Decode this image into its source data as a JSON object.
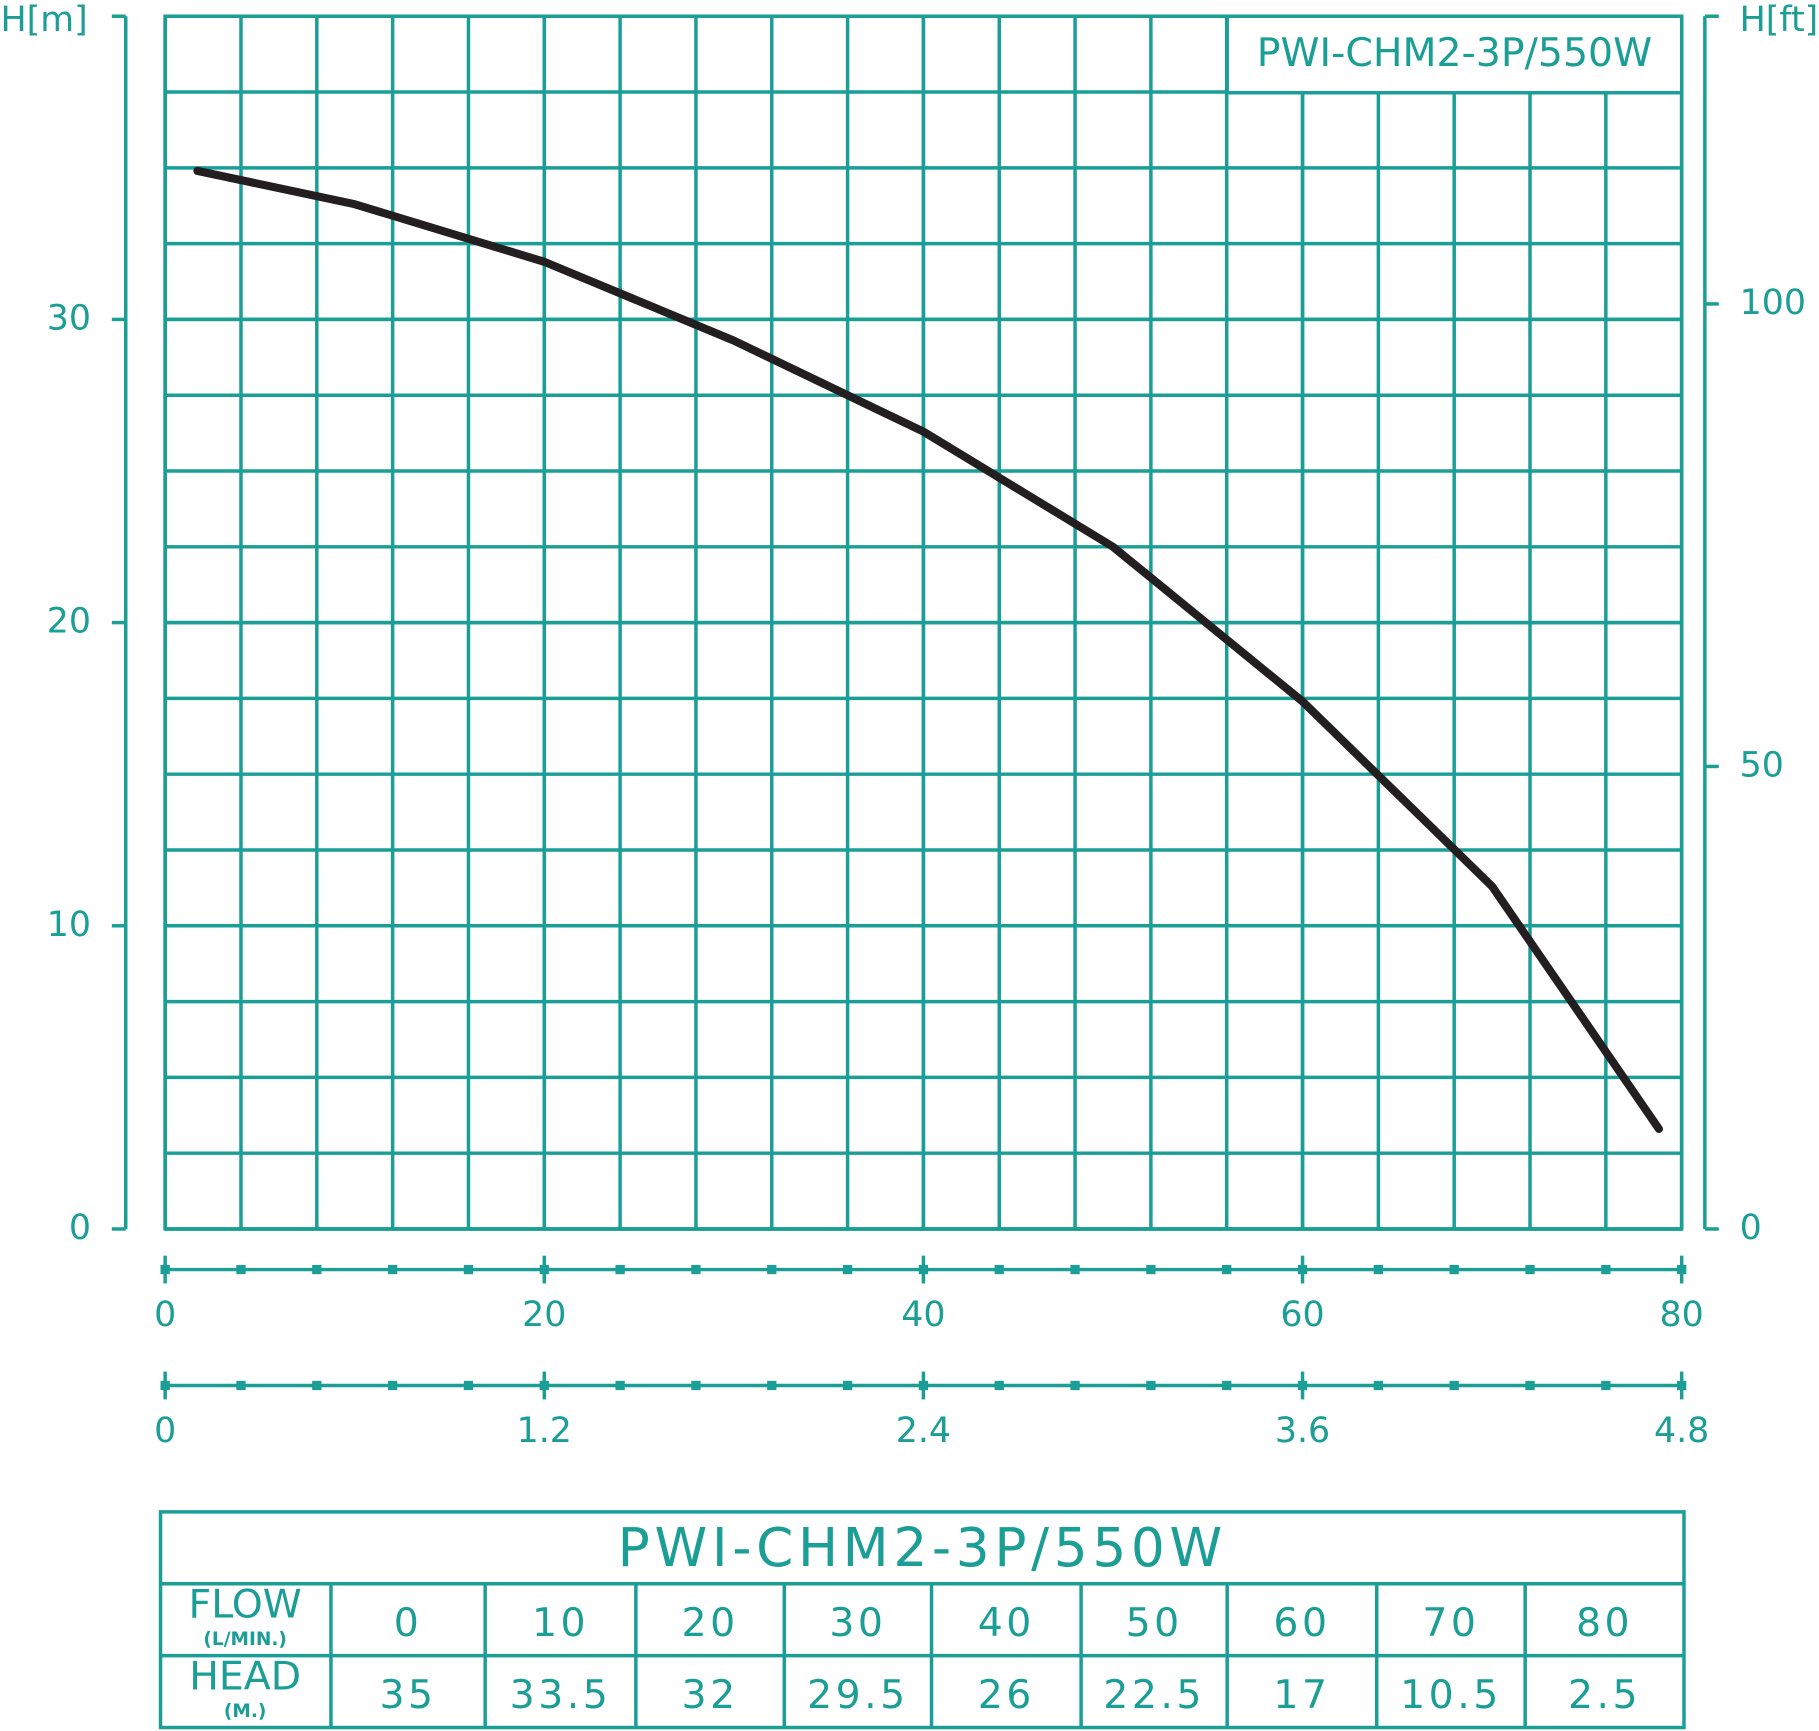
{
  "chart_data": {
    "type": "line",
    "title": "PWI-CHM2-3P/550W",
    "y_label": "H[m]",
    "y2_label": "H[ft]",
    "x": [
      1.7,
      10,
      20,
      30,
      40,
      50,
      60,
      70,
      78.8
    ],
    "series": [
      {
        "color": "#231f20",
        "values": [
          34.9,
          33.8,
          31.9,
          29.3,
          26.3,
          22.5,
          17.4,
          11.3,
          3.3
        ]
      }
    ],
    "xlim": [
      0,
      80
    ],
    "xticks": [
      0,
      20,
      40,
      60,
      80
    ],
    "x2lim": [
      0,
      4.8
    ],
    "x2ticks": [
      0,
      1.2,
      2.4,
      3.6,
      4.8
    ],
    "ylim": [
      0,
      40
    ],
    "yticks": [
      0,
      10,
      20,
      30
    ],
    "y2lim": [
      0,
      131.1
    ],
    "y2ticks": [
      0,
      50,
      100
    ],
    "grid": true,
    "axis_color": "#1a9e96"
  },
  "table": {
    "title": "PWI-CHM2-3P/550W",
    "rows": [
      {
        "label": "FLOW",
        "unit": "(L/MIN.)",
        "values": [
          0,
          10,
          20,
          30,
          40,
          50,
          60,
          70,
          80
        ]
      },
      {
        "label": "HEAD",
        "unit": "(M.)",
        "values": [
          35,
          33.5,
          32,
          29.5,
          26,
          22.5,
          17,
          10.5,
          2.5
        ]
      }
    ]
  }
}
